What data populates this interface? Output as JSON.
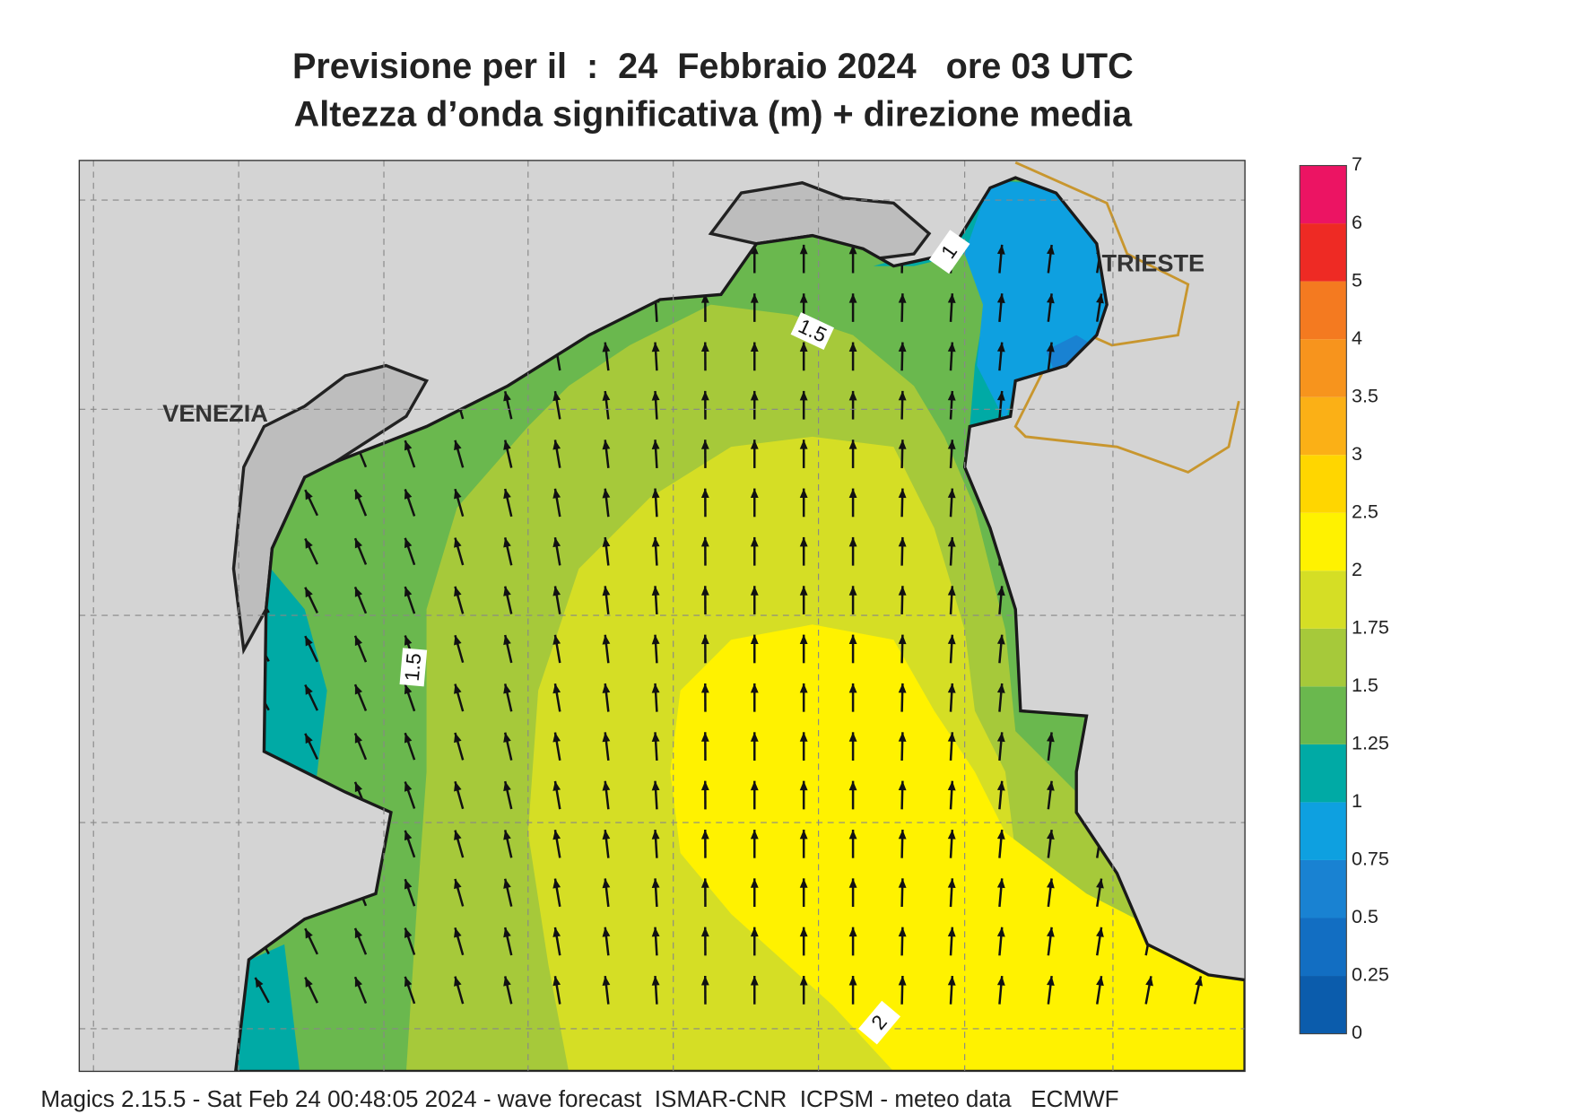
{
  "title": {
    "line1": "Previsione per il  :  24  Febbraio 2024   ore 03 UTC",
    "line2": "Altezza d’onda significativa (m) + direzione media"
  },
  "map": {
    "labels": [
      "VENEZIA",
      "TRIESTE"
    ],
    "contour_labels": [
      "1.5",
      "1.5",
      "2",
      "1"
    ]
  },
  "colorbar": {
    "levels": [
      0,
      0.25,
      0.5,
      0.75,
      1,
      1.25,
      1.5,
      1.75,
      2,
      2.5,
      3,
      3.5,
      4,
      5,
      6,
      7
    ],
    "colors": [
      "#0b5cac",
      "#126ec2",
      "#1982d2",
      "#0ea0e0",
      "#00aaa5",
      "#6ab84e",
      "#a6c93a",
      "#d5de25",
      "#fff200",
      "#ffd600",
      "#fbb016",
      "#f7941d",
      "#f47a20",
      "#ee2a24",
      "#ec1463"
    ]
  },
  "footer": "Magics 2.15.5 - Sat Feb 24 00:48:05 2024 - wave forecast  ISMAR-CNR  ICPSM - meteo data   ECMWF"
}
